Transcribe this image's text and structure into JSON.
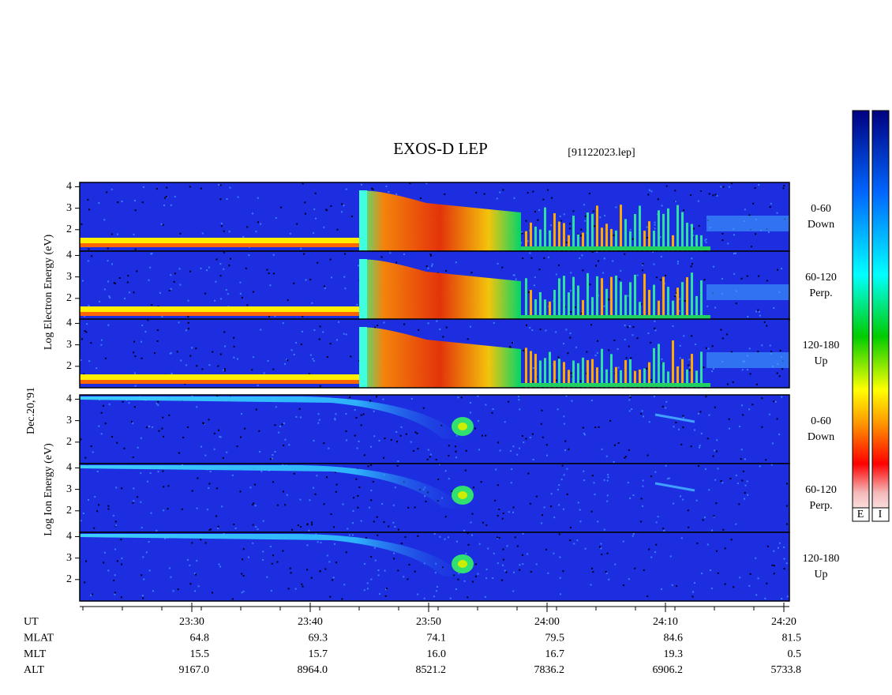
{
  "header": {
    "title": "EXOS-D LEP",
    "file": "[91122023.lep]"
  },
  "date_label": "Dec.20,'91",
  "energy_axis": {
    "ylim": [
      1,
      4.2
    ],
    "yticks": [
      2,
      3,
      4
    ]
  },
  "electron": {
    "axis_label": "Log  Electron  Energy (eV)",
    "panels": [
      {
        "range": "0-60",
        "direction": "Down"
      },
      {
        "range": "60-120",
        "direction": "Perp."
      },
      {
        "range": "120-180",
        "direction": "Up"
      }
    ]
  },
  "ion": {
    "axis_label": "Log  Ion  Energy (eV)",
    "panels": [
      {
        "range": "0-60",
        "direction": "Down"
      },
      {
        "range": "60-120",
        "direction": "Perp."
      },
      {
        "range": "120-180",
        "direction": "Up"
      }
    ]
  },
  "rows": [
    {
      "label": "UT",
      "values": [
        "23:30",
        "23:40",
        "23:50",
        "24:00",
        "24:10",
        "24:20"
      ]
    },
    {
      "label": "MLAT",
      "values": [
        "64.8",
        "69.3",
        "74.1",
        "79.5",
        "84.6",
        "81.5"
      ]
    },
    {
      "label": "MLT",
      "values": [
        "15.5",
        "15.7",
        "16.0",
        "16.7",
        "19.3",
        "0.5"
      ]
    },
    {
      "label": "ALT",
      "values": [
        "9167.0",
        "8964.0",
        "8521.2",
        "7836.2",
        "6906.2",
        "5733.8"
      ]
    }
  ],
  "colorbar": {
    "labels": [
      "E",
      "I"
    ]
  }
}
